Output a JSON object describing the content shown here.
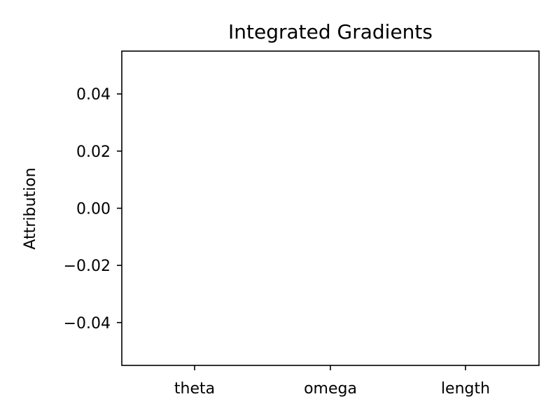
{
  "chart_data": {
    "type": "bar",
    "title": "Integrated Gradients",
    "xlabel": "",
    "ylabel": "Attribution",
    "categories": [
      "theta",
      "omega",
      "length"
    ],
    "values": [
      0,
      0,
      0
    ],
    "ylim": [
      -0.055,
      0.055
    ],
    "yticks": [
      0.04,
      0.02,
      0.0,
      -0.02,
      -0.04
    ],
    "ytick_labels": [
      "0.04",
      "0.02",
      "0.00",
      "−0.02",
      "−0.04"
    ],
    "grid": false,
    "bar_color": "#1f77b4"
  }
}
